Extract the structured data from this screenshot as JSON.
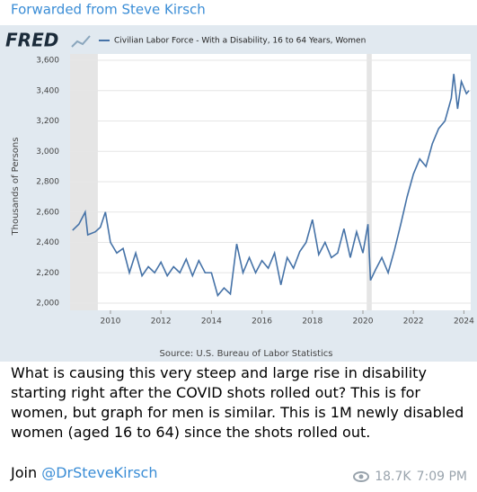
{
  "header": {
    "forwarded": "Forwarded from Steve Kirsch"
  },
  "chart_data": {
    "type": "line",
    "logo": "FRED",
    "y_label": "Thousands of Persons",
    "source": "Source: U.S. Bureau of Labor Statistics",
    "x": [
      2008.5,
      2008.75,
      2009.0,
      2009.1,
      2009.4,
      2009.6,
      2009.8,
      2010.0,
      2010.25,
      2010.5,
      2010.75,
      2011.0,
      2011.25,
      2011.5,
      2011.75,
      2012.0,
      2012.25,
      2012.5,
      2012.75,
      2013.0,
      2013.25,
      2013.5,
      2013.75,
      2014.0,
      2014.25,
      2014.5,
      2014.75,
      2015.0,
      2015.25,
      2015.5,
      2015.75,
      2016.0,
      2016.25,
      2016.5,
      2016.75,
      2017.0,
      2017.25,
      2017.5,
      2017.75,
      2018.0,
      2018.25,
      2018.5,
      2018.75,
      2019.0,
      2019.25,
      2019.5,
      2019.75,
      2020.0,
      2020.2,
      2020.3,
      2020.5,
      2020.75,
      2021.0,
      2021.25,
      2021.5,
      2021.75,
      2022.0,
      2022.25,
      2022.5,
      2022.75,
      2023.0,
      2023.25,
      2023.5,
      2023.6,
      2023.75,
      2023.9,
      2024.1,
      2024.2
    ],
    "series": [
      {
        "name": "Civilian Labor Force - With a Disability, 16 to 64 Years, Women",
        "color": "#4572a7",
        "values": [
          2480,
          2520,
          2600,
          2450,
          2470,
          2500,
          2600,
          2400,
          2330,
          2360,
          2200,
          2330,
          2180,
          2240,
          2200,
          2270,
          2180,
          2240,
          2200,
          2290,
          2180,
          2280,
          2200,
          2200,
          2050,
          2100,
          2060,
          2390,
          2200,
          2300,
          2200,
          2280,
          2230,
          2330,
          2120,
          2300,
          2230,
          2340,
          2400,
          2550,
          2320,
          2400,
          2300,
          2330,
          2490,
          2300,
          2470,
          2330,
          2520,
          2150,
          2220,
          2300,
          2200,
          2350,
          2520,
          2700,
          2850,
          2950,
          2900,
          3050,
          3150,
          3200,
          3350,
          3510,
          3280,
          3460,
          3380,
          3400
        ]
      }
    ],
    "recessions": [
      [
        2008.4,
        2009.5
      ],
      [
        2020.15,
        2020.35
      ]
    ],
    "xlim": [
      2008.4,
      2024.27
    ],
    "ylim": [
      2000,
      3600
    ],
    "xticks": [
      2010,
      2012,
      2014,
      2016,
      2018,
      2020,
      2022,
      2024
    ],
    "yticks": [
      {
        "value": 2000,
        "label": "2,000"
      },
      {
        "value": 2200,
        "label": "2,200"
      },
      {
        "value": 2400,
        "label": "2,400"
      },
      {
        "value": 2600,
        "label": "2,600"
      },
      {
        "value": 2800,
        "label": "2,800"
      },
      {
        "value": 3000,
        "label": "3,000"
      },
      {
        "value": 3200,
        "label": "3,200"
      },
      {
        "value": 3400,
        "label": "3,400"
      },
      {
        "value": 3600,
        "label": "3,600"
      }
    ],
    "grid": true
  },
  "message": {
    "text": "What is causing this very steep and large rise in disability starting right after the COVID shots rolled out? This is for women, but graph for men is similar. This is 1M newly disabled women (aged 16 to 64) since the shots rolled out.",
    "join": "Join",
    "mention": "@DrSteveKirsch",
    "views": "18.7K",
    "time": "7:09 PM"
  }
}
